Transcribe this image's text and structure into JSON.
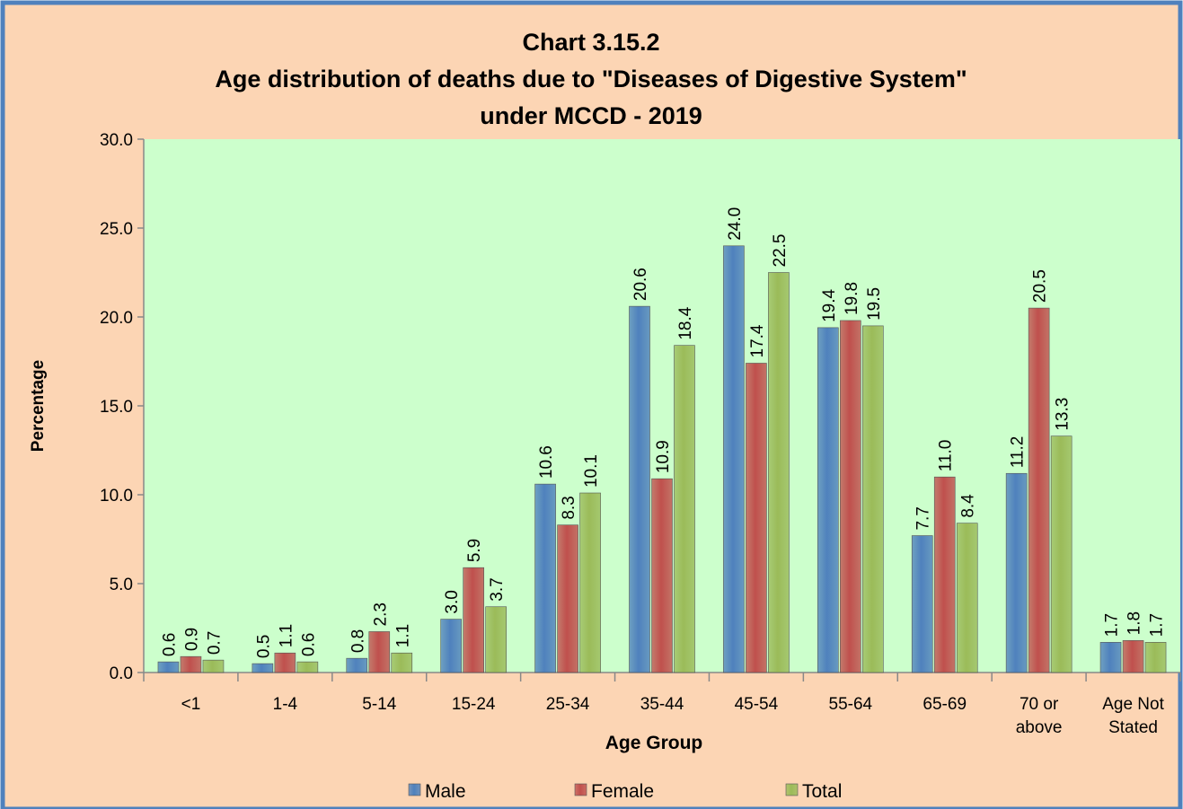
{
  "chart_data": {
    "type": "bar",
    "title": [
      "Chart 3.15.2",
      "Age distribution of deaths due to \"Diseases of Digestive System\"",
      "under MCCD - 2019"
    ],
    "x_label": "Age Group",
    "y_label": "Percentage",
    "categories": [
      "<1",
      "1-4",
      "5-14",
      "15-24",
      "25-34",
      "35-44",
      "45-54",
      "55-64",
      "65-69",
      "70 or above",
      "Age Not Stated"
    ],
    "series": [
      {
        "name": "Male",
        "color": "#4f81bd",
        "values": [
          0.6,
          0.5,
          0.8,
          3.0,
          10.6,
          20.6,
          24.0,
          19.4,
          7.7,
          11.2,
          1.7
        ],
        "value_labels": [
          "0.6",
          "0.5",
          "0.8",
          "3.0",
          "10.6",
          "20.6",
          "24.0",
          "19.4",
          "7.7",
          "11.2",
          "1.7"
        ]
      },
      {
        "name": "Female",
        "color": "#c0504d",
        "values": [
          0.9,
          1.1,
          2.3,
          5.9,
          8.3,
          10.9,
          17.4,
          19.8,
          11.0,
          20.5,
          1.8
        ],
        "value_labels": [
          "0.9",
          "1.1",
          "2.3",
          "5.9",
          "8.3",
          "10.9",
          "17.4",
          "19.8",
          "11.0",
          "20.5",
          "1.8"
        ]
      },
      {
        "name": "Total",
        "color": "#9bbb59",
        "values": [
          0.7,
          0.6,
          1.1,
          3.7,
          10.1,
          18.4,
          22.5,
          19.5,
          8.4,
          13.3,
          1.7
        ],
        "value_labels": [
          "0.7",
          "0.6",
          "1.1",
          "3.7",
          "10.1",
          "18.4",
          "22.5",
          "19.5",
          "8.4",
          "13.3",
          "1.7"
        ]
      }
    ],
    "ylim": [
      0,
      30
    ],
    "yticks": [
      {
        "value": 0,
        "label": "0.0"
      },
      {
        "value": 5,
        "label": "5.0"
      },
      {
        "value": 10,
        "label": "10.0"
      },
      {
        "value": 15,
        "label": "15.0"
      },
      {
        "value": 20,
        "label": "20.0"
      },
      {
        "value": 25,
        "label": "25.0"
      },
      {
        "value": 30,
        "label": "30.0"
      }
    ],
    "legend": "bottom"
  }
}
